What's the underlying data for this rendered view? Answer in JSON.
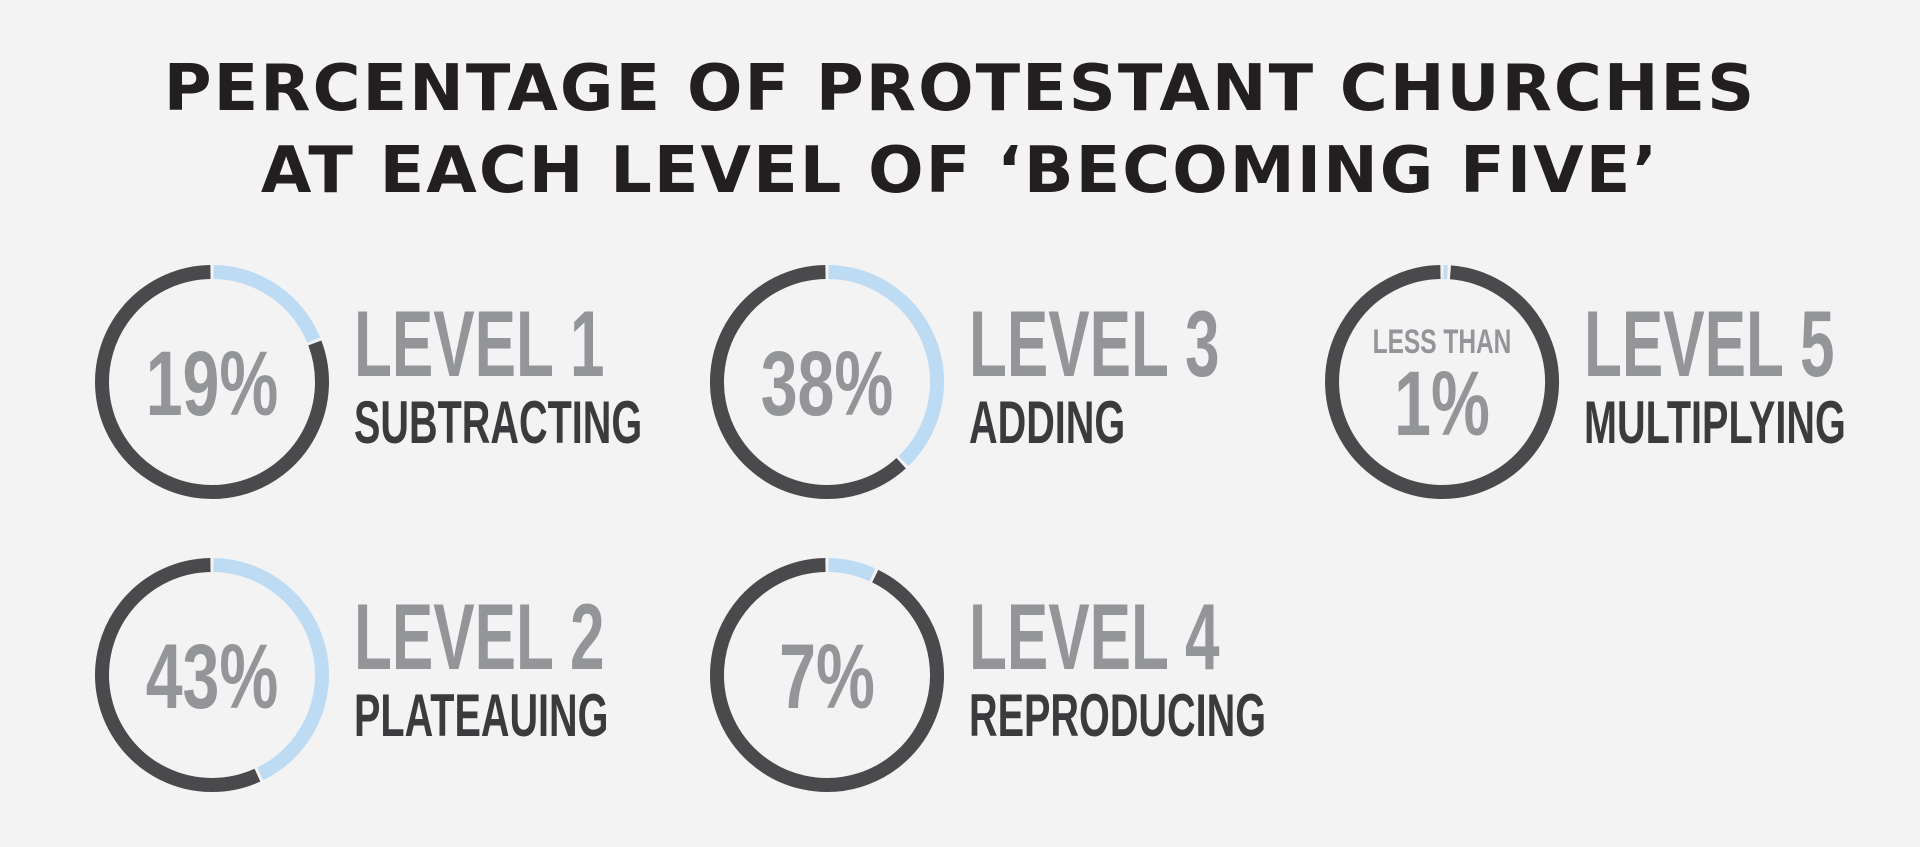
{
  "chart_data": {
    "type": "pie",
    "title_lines": [
      "PERCENTAGE OF PROTESTANT CHURCHES",
      "AT EACH LEVEL OF ‘BECOMING FIVE’"
    ],
    "colors": {
      "highlight": "#bddbf3",
      "remainder": "#4a4a4c"
    },
    "items": [
      {
        "level": "LEVEL 1",
        "name": "SUBTRACTING",
        "value": 19,
        "label": "19%"
      },
      {
        "level": "LEVEL 2",
        "name": "PLATEAUING",
        "value": 43,
        "label": "43%"
      },
      {
        "level": "LEVEL 3",
        "name": "ADDING",
        "value": 38,
        "label": "38%"
      },
      {
        "level": "LEVEL 4",
        "name": "REPRODUCING",
        "value": 7,
        "label": "7%"
      },
      {
        "level": "LEVEL 5",
        "name": "MULTIPLYING",
        "value": 1,
        "prefix": "LESS THAN",
        "label": "1%"
      }
    ]
  }
}
